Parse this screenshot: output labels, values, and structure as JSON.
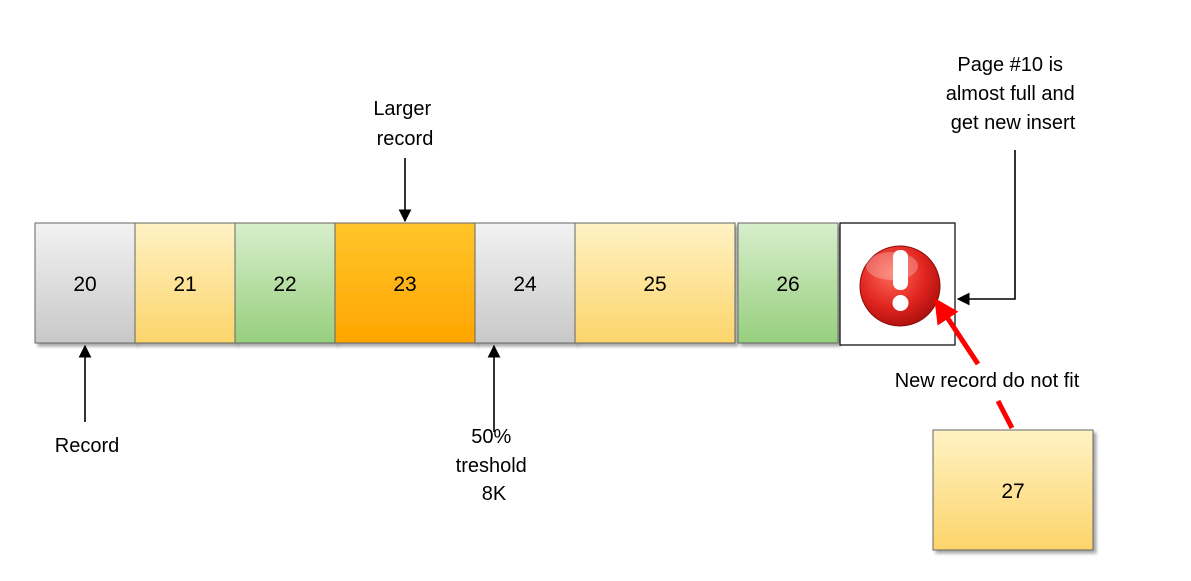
{
  "colors": {
    "gray": "#dcdcdc",
    "yellow": "#fde39c",
    "green": "#b6dca3",
    "orange": "#ffb600",
    "red": "#e02420",
    "stroke": "#666666"
  },
  "page": {
    "records": [
      {
        "id": "20",
        "color": "gray"
      },
      {
        "id": "21",
        "color": "yellow"
      },
      {
        "id": "22",
        "color": "green"
      },
      {
        "id": "23",
        "color": "orange"
      },
      {
        "id": "24",
        "color": "gray"
      },
      {
        "id": "25",
        "color": "yellow"
      },
      {
        "id": "26",
        "color": "green"
      }
    ],
    "error_icon": "exclamation-icon"
  },
  "new_record": {
    "id": "27",
    "color": "yellow"
  },
  "annotations": {
    "larger_record": [
      "Larger",
      "record"
    ],
    "record": "Record",
    "threshold": [
      "50%",
      "treshold",
      "8K"
    ],
    "page_full": [
      "Page #10 is",
      "almost full and",
      "get new insert"
    ],
    "no_fit": "New record do not fit"
  }
}
